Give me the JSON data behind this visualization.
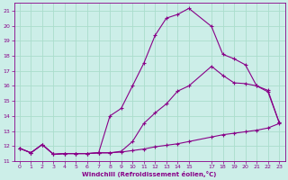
{
  "bg_color": "#cceee8",
  "grid_color": "#aaddcc",
  "line_color": "#880088",
  "xlabel": "Windchill (Refroidissement éolien,°C)",
  "xlim": [
    -0.5,
    23.5
  ],
  "ylim": [
    11,
    21.5
  ],
  "yticks": [
    11,
    12,
    13,
    14,
    15,
    16,
    17,
    18,
    19,
    20,
    21
  ],
  "xticks": [
    0,
    1,
    2,
    3,
    4,
    5,
    6,
    7,
    8,
    9,
    10,
    11,
    12,
    13,
    14,
    15,
    17,
    18,
    19,
    20,
    21,
    22,
    23
  ],
  "curve1_x": [
    0,
    1,
    2,
    3,
    4,
    5,
    6,
    7,
    8,
    9,
    10,
    11,
    12,
    13,
    14,
    15,
    17,
    18,
    19,
    20,
    21,
    22,
    23
  ],
  "curve1_y": [
    11.85,
    11.55,
    12.1,
    11.45,
    11.5,
    11.5,
    11.5,
    11.55,
    11.55,
    11.6,
    11.7,
    11.8,
    11.95,
    12.05,
    12.15,
    12.3,
    12.6,
    12.75,
    12.85,
    12.95,
    13.05,
    13.2,
    13.5
  ],
  "curve2_x": [
    0,
    1,
    2,
    3,
    4,
    5,
    6,
    7,
    8,
    9,
    10,
    11,
    12,
    13,
    14,
    15,
    17,
    18,
    19,
    20,
    21,
    22,
    23
  ],
  "curve2_y": [
    11.85,
    11.55,
    12.1,
    11.45,
    11.5,
    11.5,
    11.5,
    11.55,
    11.55,
    11.65,
    12.3,
    13.5,
    14.2,
    14.8,
    15.65,
    16.0,
    17.3,
    16.7,
    16.2,
    16.15,
    16.0,
    15.6,
    13.55
  ],
  "curve3_x": [
    0,
    1,
    2,
    3,
    4,
    5,
    6,
    7,
    8,
    9,
    10,
    11,
    12,
    13,
    14,
    15,
    17,
    18,
    19,
    20,
    21,
    22,
    23
  ],
  "curve3_y": [
    11.85,
    11.55,
    12.1,
    11.45,
    11.5,
    11.5,
    11.5,
    11.55,
    14.0,
    14.5,
    16.0,
    17.5,
    19.35,
    20.5,
    20.75,
    21.15,
    19.95,
    18.1,
    17.8,
    17.4,
    16.0,
    15.7,
    13.55
  ]
}
